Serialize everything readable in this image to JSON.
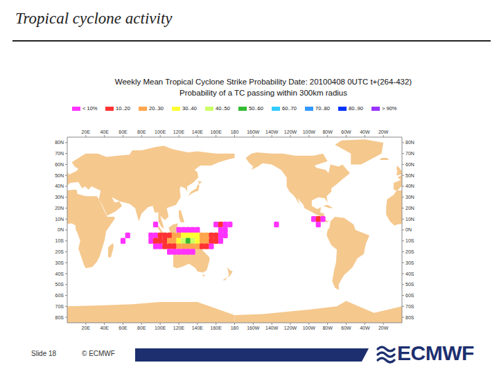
{
  "slide": {
    "title": "Tropical cyclone activity",
    "number": "Slide 18",
    "copyright": "© ECMWF",
    "logo": "ECMWF"
  },
  "chart_data": {
    "type": "map",
    "title": "Weekly Mean Tropical Cyclone Strike Probability Date: 20100408 0UTC t+(264-432)",
    "subtitle": "Probability of a TC passing within 300km radius",
    "color_bins": [
      {
        "label": "< 10%",
        "from": 0,
        "to": 10,
        "color": "#ff33ff"
      },
      {
        "label": "10..20",
        "from": 10,
        "to": 20,
        "color": "#ff3333"
      },
      {
        "label": "20..30",
        "from": 20,
        "to": 30,
        "color": "#ffa64d"
      },
      {
        "label": "30..40",
        "from": 30,
        "to": 40,
        "color": "#ffff33"
      },
      {
        "label": "40..50",
        "from": 40,
        "to": 50,
        "color": "#ccff66"
      },
      {
        "label": "50..60",
        "from": 50,
        "to": 60,
        "color": "#33bb33"
      },
      {
        "label": "60..70",
        "from": 60,
        "to": 70,
        "color": "#33ccff"
      },
      {
        "label": "70..80",
        "from": 70,
        "to": 80,
        "color": "#3399ff"
      },
      {
        "label": "80..90",
        "from": 80,
        "to": 90,
        "color": "#0033ff"
      },
      {
        "label": "> 90%",
        "from": 90,
        "to": 100,
        "color": "#9933ff"
      }
    ],
    "xlim": [
      0,
      360
    ],
    "xticks": [
      {
        "value": 20,
        "label": "20E"
      },
      {
        "value": 40,
        "label": "40E"
      },
      {
        "value": 60,
        "label": "60E"
      },
      {
        "value": 80,
        "label": "80E"
      },
      {
        "value": 100,
        "label": "100E"
      },
      {
        "value": 120,
        "label": "120E"
      },
      {
        "value": 140,
        "label": "140E"
      },
      {
        "value": 160,
        "label": "160E"
      },
      180,
      {
        "value": 200,
        "label": "160W"
      },
      {
        "value": 220,
        "label": "140W"
      },
      {
        "value": 240,
        "label": "120W"
      },
      {
        "value": 260,
        "label": "100W"
      },
      {
        "value": 280,
        "label": "80W"
      },
      {
        "value": 300,
        "label": "60W"
      },
      {
        "value": 320,
        "label": "40W"
      },
      {
        "value": 340,
        "label": "20W"
      }
    ],
    "ylim": [
      -85,
      85
    ],
    "yticks": [
      {
        "value": 80,
        "label": "80N"
      },
      {
        "value": 70,
        "label": "70N"
      },
      {
        "value": 60,
        "label": "60N"
      },
      {
        "value": 50,
        "label": "50N"
      },
      {
        "value": 40,
        "label": "40N"
      },
      {
        "value": 30,
        "label": "30N"
      },
      {
        "value": 20,
        "label": "20N"
      },
      {
        "value": 10,
        "label": "10N"
      },
      {
        "value": 0,
        "label": "0N"
      },
      {
        "value": -10,
        "label": "10S"
      },
      {
        "value": -20,
        "label": "20S"
      },
      {
        "value": -30,
        "label": "30S"
      },
      {
        "value": -40,
        "label": "40S"
      },
      {
        "value": -50,
        "label": "50S"
      },
      {
        "value": -60,
        "label": "60S"
      },
      {
        "value": -70,
        "label": "70S"
      },
      {
        "value": -80,
        "label": "80S"
      }
    ],
    "cells": [
      {
        "lon": 120,
        "lat": 0,
        "value": 6
      },
      {
        "lon": 125,
        "lat": 0,
        "value": 7
      },
      {
        "lon": 130,
        "lat": 0,
        "value": 8
      },
      {
        "lon": 135,
        "lat": 0,
        "value": 7
      },
      {
        "lon": 140,
        "lat": 0,
        "value": 6
      },
      {
        "lon": 90,
        "lat": -5,
        "value": 5
      },
      {
        "lon": 95,
        "lat": -5,
        "value": 8
      },
      {
        "lon": 100,
        "lat": -5,
        "value": 12
      },
      {
        "lon": 105,
        "lat": -5,
        "value": 15
      },
      {
        "lon": 110,
        "lat": -5,
        "value": 18
      },
      {
        "lon": 115,
        "lat": -5,
        "value": 24
      },
      {
        "lon": 120,
        "lat": -5,
        "value": 28
      },
      {
        "lon": 125,
        "lat": -5,
        "value": 33
      },
      {
        "lon": 130,
        "lat": -5,
        "value": 36
      },
      {
        "lon": 135,
        "lat": -5,
        "value": 34
      },
      {
        "lon": 140,
        "lat": -5,
        "value": 31
      },
      {
        "lon": 145,
        "lat": -5,
        "value": 26
      },
      {
        "lon": 150,
        "lat": -5,
        "value": 21
      },
      {
        "lon": 155,
        "lat": -5,
        "value": 16
      },
      {
        "lon": 160,
        "lat": -5,
        "value": 12
      },
      {
        "lon": 165,
        "lat": -5,
        "value": 8
      },
      {
        "lon": 170,
        "lat": -5,
        "value": 6
      },
      {
        "lon": 90,
        "lat": -10,
        "value": 6
      },
      {
        "lon": 95,
        "lat": -10,
        "value": 10
      },
      {
        "lon": 100,
        "lat": -10,
        "value": 14
      },
      {
        "lon": 105,
        "lat": -10,
        "value": 18
      },
      {
        "lon": 110,
        "lat": -10,
        "value": 23
      },
      {
        "lon": 115,
        "lat": -10,
        "value": 29
      },
      {
        "lon": 120,
        "lat": -10,
        "value": 35
      },
      {
        "lon": 125,
        "lat": -10,
        "value": 42
      },
      {
        "lon": 130,
        "lat": -10,
        "value": 55
      },
      {
        "lon": 135,
        "lat": -10,
        "value": 45
      },
      {
        "lon": 140,
        "lat": -10,
        "value": 36
      },
      {
        "lon": 145,
        "lat": -10,
        "value": 29
      },
      {
        "lon": 150,
        "lat": -10,
        "value": 22
      },
      {
        "lon": 155,
        "lat": -10,
        "value": 15
      },
      {
        "lon": 160,
        "lat": -10,
        "value": 11
      },
      {
        "lon": 165,
        "lat": -10,
        "value": 7
      },
      {
        "lon": 95,
        "lat": -15,
        "value": 5
      },
      {
        "lon": 100,
        "lat": -15,
        "value": 8
      },
      {
        "lon": 105,
        "lat": -15,
        "value": 12
      },
      {
        "lon": 110,
        "lat": -15,
        "value": 16
      },
      {
        "lon": 115,
        "lat": -15,
        "value": 19
      },
      {
        "lon": 120,
        "lat": -15,
        "value": 23
      },
      {
        "lon": 125,
        "lat": -15,
        "value": 26
      },
      {
        "lon": 130,
        "lat": -15,
        "value": 29
      },
      {
        "lon": 135,
        "lat": -15,
        "value": 25
      },
      {
        "lon": 140,
        "lat": -15,
        "value": 21
      },
      {
        "lon": 145,
        "lat": -15,
        "value": 15
      },
      {
        "lon": 150,
        "lat": -15,
        "value": 10
      },
      {
        "lon": 155,
        "lat": -15,
        "value": 6
      },
      {
        "lon": 110,
        "lat": -20,
        "value": 5
      },
      {
        "lon": 115,
        "lat": -20,
        "value": 7
      },
      {
        "lon": 120,
        "lat": -20,
        "value": 8
      },
      {
        "lon": 125,
        "lat": -20,
        "value": 9
      },
      {
        "lon": 130,
        "lat": -20,
        "value": 8
      },
      {
        "lon": 135,
        "lat": -20,
        "value": 6
      },
      {
        "lon": 160,
        "lat": 5,
        "value": 7
      },
      {
        "lon": 165,
        "lat": 5,
        "value": 13
      },
      {
        "lon": 170,
        "lat": 5,
        "value": 9
      },
      {
        "lon": 175,
        "lat": 5,
        "value": 5
      },
      {
        "lon": 165,
        "lat": 0,
        "value": 6
      },
      {
        "lon": 170,
        "lat": 0,
        "value": 5
      },
      {
        "lon": 60,
        "lat": -10,
        "value": 6
      },
      {
        "lon": 65,
        "lat": -5,
        "value": 4
      },
      {
        "lon": 95,
        "lat": 5,
        "value": 5
      },
      {
        "lon": 225,
        "lat": 5,
        "value": 5
      },
      {
        "lon": 265,
        "lat": 10,
        "value": 8
      },
      {
        "lon": 270,
        "lat": 10,
        "value": 16
      },
      {
        "lon": 275,
        "lat": 10,
        "value": 7
      },
      {
        "lon": 270,
        "lat": 5,
        "value": 9
      }
    ]
  }
}
